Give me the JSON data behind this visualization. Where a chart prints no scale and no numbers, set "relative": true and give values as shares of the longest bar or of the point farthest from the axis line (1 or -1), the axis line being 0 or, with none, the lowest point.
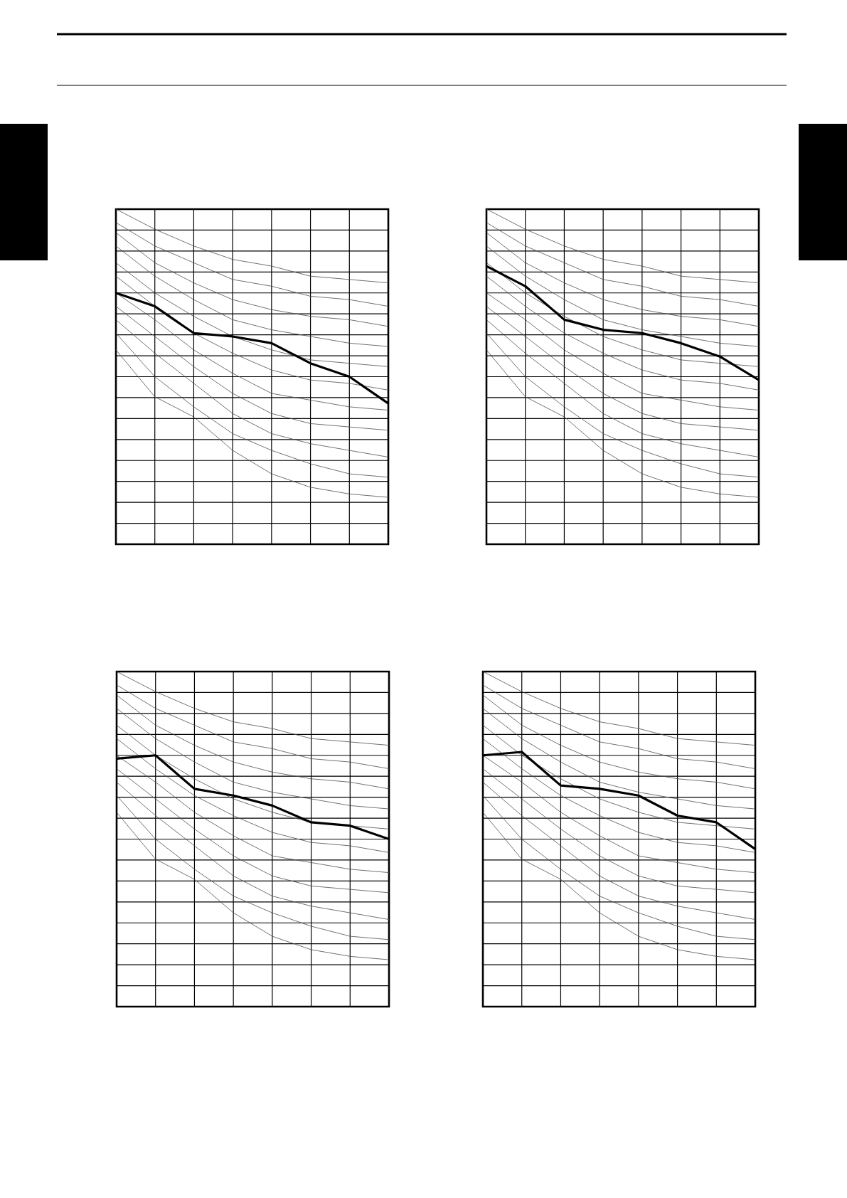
{
  "chart_data": [
    {
      "type": "line",
      "relative": true,
      "grid": true,
      "categories": [
        null,
        null,
        null,
        null,
        null,
        null,
        null,
        null
      ],
      "series": [
        {
          "color": "#4d4d4d",
          "values": [
            1.0,
            0.94,
            0.89,
            0.85,
            0.83,
            0.8,
            0.79,
            0.78
          ]
        },
        {
          "color": "#4d4d4d",
          "values": [
            0.96,
            0.89,
            0.84,
            0.79,
            0.77,
            0.74,
            0.73,
            0.71
          ]
        },
        {
          "color": "#4d4d4d",
          "values": [
            0.93,
            0.84,
            0.78,
            0.73,
            0.7,
            0.68,
            0.67,
            0.65
          ]
        },
        {
          "color": "#4d4d4d",
          "values": [
            0.89,
            0.8,
            0.73,
            0.67,
            0.64,
            0.62,
            0.6,
            0.59
          ]
        },
        {
          "color": "#4d4d4d",
          "values": [
            0.84,
            0.75,
            0.68,
            0.62,
            0.58,
            0.55,
            0.54,
            0.53
          ]
        },
        {
          "color": "#4d4d4d",
          "values": [
            0.8,
            0.71,
            0.63,
            0.57,
            0.52,
            0.49,
            0.48,
            0.46
          ]
        },
        {
          "color": "#4d4d4d",
          "values": [
            0.75,
            0.67,
            0.58,
            0.51,
            0.45,
            0.43,
            0.41,
            0.4
          ]
        },
        {
          "color": "#4d4d4d",
          "values": [
            0.71,
            0.62,
            0.53,
            0.45,
            0.39,
            0.36,
            0.35,
            0.34
          ]
        },
        {
          "color": "#4d4d4d",
          "values": [
            0.67,
            0.57,
            0.48,
            0.39,
            0.33,
            0.3,
            0.28,
            0.26
          ]
        },
        {
          "color": "#4d4d4d",
          "values": [
            0.63,
            0.5,
            0.41,
            0.33,
            0.28,
            0.24,
            0.21,
            0.2
          ]
        },
        {
          "color": "#4d4d4d",
          "values": [
            0.58,
            0.44,
            0.38,
            0.28,
            0.21,
            0.17,
            0.15,
            0.14
          ]
        },
        {
          "color": "#000000",
          "values": [
            0.75,
            0.71,
            0.63,
            0.62,
            0.6,
            0.54,
            0.5,
            0.42
          ]
        }
      ]
    },
    {
      "type": "line",
      "relative": true,
      "grid": true,
      "categories": [
        null,
        null,
        null,
        null,
        null,
        null,
        null,
        null
      ],
      "series": [
        {
          "color": "#4d4d4d",
          "values": [
            1.0,
            0.94,
            0.89,
            0.85,
            0.83,
            0.8,
            0.79,
            0.78
          ]
        },
        {
          "color": "#4d4d4d",
          "values": [
            0.96,
            0.89,
            0.84,
            0.79,
            0.77,
            0.74,
            0.73,
            0.71
          ]
        },
        {
          "color": "#4d4d4d",
          "values": [
            0.93,
            0.84,
            0.78,
            0.73,
            0.7,
            0.68,
            0.67,
            0.65
          ]
        },
        {
          "color": "#4d4d4d",
          "values": [
            0.89,
            0.8,
            0.73,
            0.67,
            0.64,
            0.62,
            0.6,
            0.59
          ]
        },
        {
          "color": "#4d4d4d",
          "values": [
            0.84,
            0.75,
            0.68,
            0.62,
            0.58,
            0.55,
            0.54,
            0.53
          ]
        },
        {
          "color": "#4d4d4d",
          "values": [
            0.8,
            0.71,
            0.63,
            0.57,
            0.52,
            0.49,
            0.48,
            0.46
          ]
        },
        {
          "color": "#4d4d4d",
          "values": [
            0.75,
            0.67,
            0.58,
            0.51,
            0.45,
            0.43,
            0.41,
            0.4
          ]
        },
        {
          "color": "#4d4d4d",
          "values": [
            0.71,
            0.62,
            0.53,
            0.45,
            0.39,
            0.36,
            0.35,
            0.34
          ]
        },
        {
          "color": "#4d4d4d",
          "values": [
            0.67,
            0.57,
            0.48,
            0.39,
            0.33,
            0.3,
            0.28,
            0.26
          ]
        },
        {
          "color": "#4d4d4d",
          "values": [
            0.63,
            0.5,
            0.41,
            0.33,
            0.28,
            0.24,
            0.21,
            0.2
          ]
        },
        {
          "color": "#4d4d4d",
          "values": [
            0.58,
            0.44,
            0.38,
            0.28,
            0.21,
            0.17,
            0.15,
            0.14
          ]
        },
        {
          "color": "#000000",
          "values": [
            0.83,
            0.77,
            0.67,
            0.64,
            0.63,
            0.6,
            0.56,
            0.49
          ]
        }
      ]
    },
    {
      "type": "line",
      "relative": true,
      "grid": true,
      "categories": [
        null,
        null,
        null,
        null,
        null,
        null,
        null,
        null
      ],
      "series": [
        {
          "color": "#4d4d4d",
          "values": [
            1.0,
            0.94,
            0.89,
            0.85,
            0.83,
            0.8,
            0.79,
            0.78
          ]
        },
        {
          "color": "#4d4d4d",
          "values": [
            0.96,
            0.89,
            0.84,
            0.79,
            0.77,
            0.74,
            0.73,
            0.71
          ]
        },
        {
          "color": "#4d4d4d",
          "values": [
            0.93,
            0.84,
            0.78,
            0.73,
            0.7,
            0.68,
            0.67,
            0.65
          ]
        },
        {
          "color": "#4d4d4d",
          "values": [
            0.89,
            0.8,
            0.73,
            0.67,
            0.64,
            0.62,
            0.6,
            0.59
          ]
        },
        {
          "color": "#4d4d4d",
          "values": [
            0.84,
            0.75,
            0.68,
            0.62,
            0.58,
            0.55,
            0.54,
            0.53
          ]
        },
        {
          "color": "#4d4d4d",
          "values": [
            0.8,
            0.71,
            0.63,
            0.57,
            0.52,
            0.49,
            0.48,
            0.46
          ]
        },
        {
          "color": "#4d4d4d",
          "values": [
            0.75,
            0.67,
            0.58,
            0.51,
            0.45,
            0.43,
            0.41,
            0.4
          ]
        },
        {
          "color": "#4d4d4d",
          "values": [
            0.71,
            0.62,
            0.53,
            0.45,
            0.39,
            0.36,
            0.35,
            0.34
          ]
        },
        {
          "color": "#4d4d4d",
          "values": [
            0.67,
            0.57,
            0.48,
            0.39,
            0.33,
            0.3,
            0.28,
            0.26
          ]
        },
        {
          "color": "#4d4d4d",
          "values": [
            0.63,
            0.5,
            0.41,
            0.33,
            0.28,
            0.24,
            0.21,
            0.2
          ]
        },
        {
          "color": "#4d4d4d",
          "values": [
            0.58,
            0.44,
            0.38,
            0.28,
            0.21,
            0.17,
            0.15,
            0.14
          ]
        },
        {
          "color": "#000000",
          "values": [
            0.74,
            0.75,
            0.65,
            0.63,
            0.6,
            0.55,
            0.54,
            0.5
          ]
        }
      ]
    },
    {
      "type": "line",
      "relative": true,
      "grid": true,
      "categories": [
        null,
        null,
        null,
        null,
        null,
        null,
        null,
        null
      ],
      "series": [
        {
          "color": "#4d4d4d",
          "values": [
            1.0,
            0.94,
            0.89,
            0.85,
            0.83,
            0.8,
            0.79,
            0.78
          ]
        },
        {
          "color": "#4d4d4d",
          "values": [
            0.96,
            0.89,
            0.84,
            0.79,
            0.77,
            0.74,
            0.73,
            0.71
          ]
        },
        {
          "color": "#4d4d4d",
          "values": [
            0.93,
            0.84,
            0.78,
            0.73,
            0.7,
            0.68,
            0.67,
            0.65
          ]
        },
        {
          "color": "#4d4d4d",
          "values": [
            0.89,
            0.8,
            0.73,
            0.67,
            0.64,
            0.62,
            0.6,
            0.59
          ]
        },
        {
          "color": "#4d4d4d",
          "values": [
            0.84,
            0.75,
            0.68,
            0.62,
            0.58,
            0.55,
            0.54,
            0.53
          ]
        },
        {
          "color": "#4d4d4d",
          "values": [
            0.8,
            0.71,
            0.63,
            0.57,
            0.52,
            0.49,
            0.48,
            0.46
          ]
        },
        {
          "color": "#4d4d4d",
          "values": [
            0.75,
            0.67,
            0.58,
            0.51,
            0.45,
            0.43,
            0.41,
            0.4
          ]
        },
        {
          "color": "#4d4d4d",
          "values": [
            0.71,
            0.62,
            0.53,
            0.45,
            0.39,
            0.36,
            0.35,
            0.34
          ]
        },
        {
          "color": "#4d4d4d",
          "values": [
            0.67,
            0.57,
            0.48,
            0.39,
            0.33,
            0.3,
            0.28,
            0.26
          ]
        },
        {
          "color": "#4d4d4d",
          "values": [
            0.63,
            0.5,
            0.41,
            0.33,
            0.28,
            0.24,
            0.21,
            0.2
          ]
        },
        {
          "color": "#4d4d4d",
          "values": [
            0.58,
            0.44,
            0.38,
            0.28,
            0.21,
            0.17,
            0.15,
            0.14
          ]
        },
        {
          "color": "#000000",
          "values": [
            0.75,
            0.76,
            0.66,
            0.65,
            0.63,
            0.57,
            0.55,
            0.47
          ]
        }
      ]
    }
  ]
}
